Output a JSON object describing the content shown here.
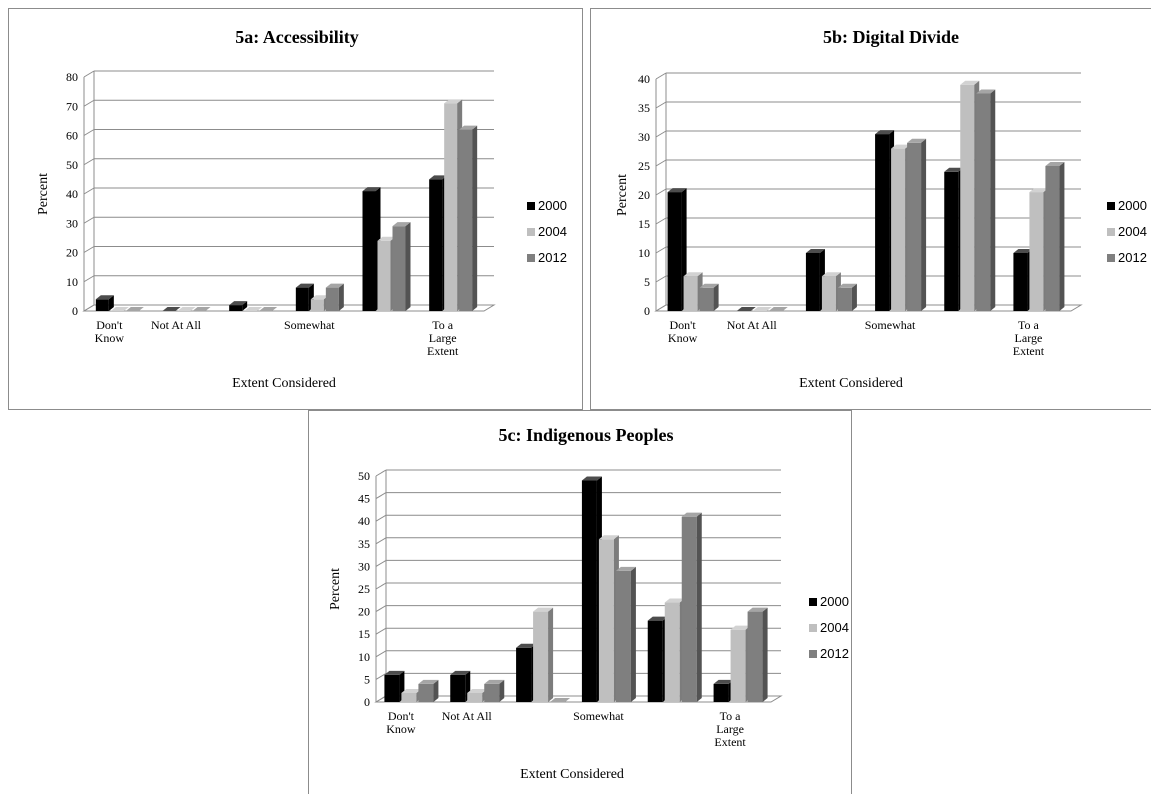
{
  "colors": {
    "2000": "#000000",
    "2004": "#bfbfbf",
    "2012": "#7f7f7f"
  },
  "chart_data": [
    {
      "type": "bar",
      "title": "5a: Accessibility",
      "xlabel": "Extent Considered",
      "ylabel": "Percent",
      "ylim": [
        0,
        80
      ],
      "yticks": [
        "0",
        "10",
        "20",
        "30",
        "40",
        "50",
        "60",
        "70",
        "80"
      ],
      "legend_position": "right",
      "categories": [
        "Don't Know",
        "Not At All",
        "",
        "Somewhat",
        "",
        "To a Large Extent"
      ],
      "category_labels": [
        [
          "Don't",
          "Know"
        ],
        [
          "Not At All"
        ],
        [],
        [
          "Somewhat"
        ],
        [],
        [
          "To a",
          "Large",
          "Extent"
        ]
      ],
      "series": [
        {
          "name": "2000",
          "values": [
            4,
            0,
            2,
            8,
            41,
            45
          ]
        },
        {
          "name": "2004",
          "values": [
            0,
            0,
            0,
            4,
            24,
            71
          ]
        },
        {
          "name": "2012",
          "values": [
            0,
            0,
            0,
            8,
            29,
            62
          ]
        }
      ]
    },
    {
      "type": "bar",
      "title": "5b: Digital Divide",
      "xlabel": "Extent Considered",
      "ylabel": "Percent",
      "ylim": [
        0,
        40
      ],
      "yticks": [
        "0",
        "5",
        "10",
        "15",
        "20",
        "25",
        "30",
        "35",
        "40"
      ],
      "legend_position": "right",
      "categories": [
        "Don't Know",
        "Not At All",
        "",
        "Somewhat",
        "",
        "To a Large Extent"
      ],
      "category_labels": [
        [
          "Don't",
          "Know"
        ],
        [
          "Not At All"
        ],
        [],
        [
          "Somewhat"
        ],
        [],
        [
          "To a",
          "Large",
          "Extent"
        ]
      ],
      "series": [
        {
          "name": "2000",
          "values": [
            20.5,
            0,
            10,
            30.5,
            24,
            10
          ]
        },
        {
          "name": "2004",
          "values": [
            6,
            0,
            6,
            28,
            39,
            20.5
          ]
        },
        {
          "name": "2012",
          "values": [
            4,
            0,
            4,
            29,
            37.5,
            25
          ]
        }
      ]
    },
    {
      "type": "bar",
      "title": "5c: Indigenous Peoples",
      "xlabel": "Extent Considered",
      "ylabel": "Percent",
      "ylim": [
        0,
        50
      ],
      "yticks": [
        "0",
        "5",
        "10",
        "15",
        "20",
        "25",
        "30",
        "35",
        "40",
        "45",
        "50"
      ],
      "legend_position": "right",
      "categories": [
        "Don't Know",
        "Not At All",
        "",
        "Somewhat",
        "",
        "To a Large Extent"
      ],
      "category_labels": [
        [
          "Don't",
          "Know"
        ],
        [
          "Not At All"
        ],
        [],
        [
          "Somewhat"
        ],
        [],
        [
          "To a",
          "Large",
          "Extent"
        ]
      ],
      "series": [
        {
          "name": "2000",
          "values": [
            6,
            6,
            12,
            49,
            18,
            4
          ]
        },
        {
          "name": "2004",
          "values": [
            2,
            2,
            20,
            36,
            22,
            16
          ]
        },
        {
          "name": "2012",
          "values": [
            4,
            4,
            0,
            29,
            41,
            20
          ]
        }
      ]
    }
  ]
}
